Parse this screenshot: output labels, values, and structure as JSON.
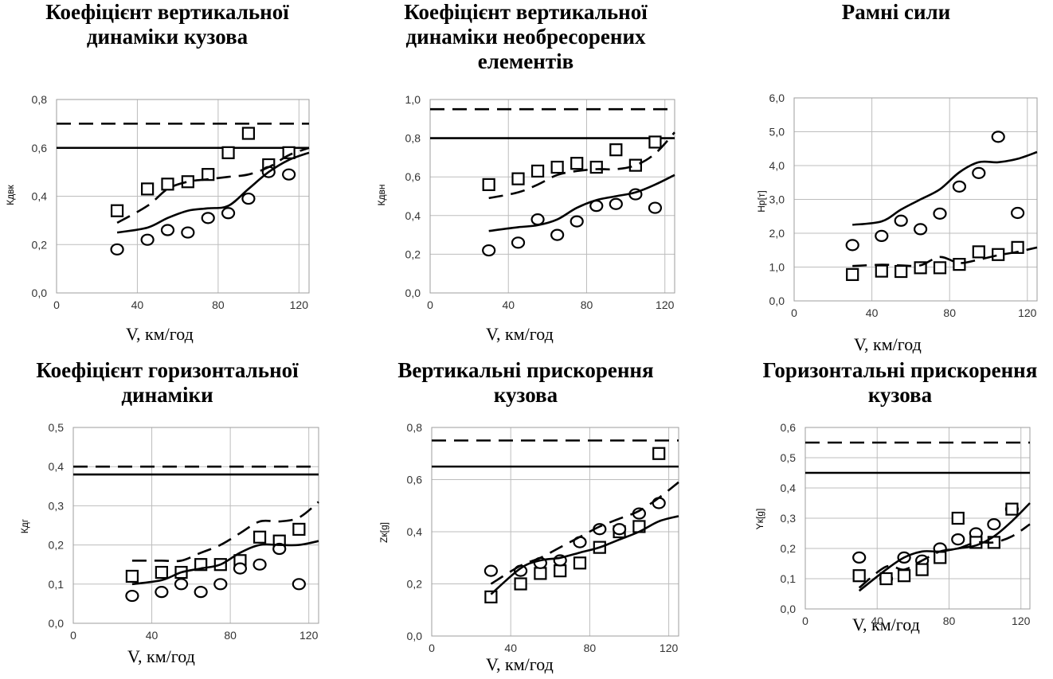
{
  "chart_data": [
    {
      "type": "line",
      "title": "Коефіцієнт вертикальної\nдинаміки кузова",
      "xlabel": "V, км/год",
      "ylabel": "Кдвк",
      "xlim": [
        0,
        125
      ],
      "xticks": [
        "0",
        "40",
        "80",
        "120"
      ],
      "xtick_values": [
        0,
        40,
        80,
        120
      ],
      "ylim": [
        0,
        0.8
      ],
      "yticks": [
        "0,0",
        "0,2",
        "0,4",
        "0,6",
        "0,8"
      ],
      "grid": true,
      "hlines": [
        {
          "value": 0.7,
          "style": "dashed"
        },
        {
          "value": 0.6,
          "style": "solid"
        }
      ],
      "series": [
        {
          "marker": "square",
          "x": [
            30,
            45,
            55,
            65,
            75,
            85,
            95,
            105,
            115
          ],
          "y": [
            0.34,
            0.43,
            0.45,
            0.46,
            0.49,
            0.58,
            0.66,
            0.53,
            0.58
          ]
        },
        {
          "marker": "circle",
          "x": [
            30,
            45,
            55,
            65,
            75,
            85,
            95,
            105,
            115
          ],
          "y": [
            0.18,
            0.22,
            0.26,
            0.25,
            0.31,
            0.33,
            0.39,
            0.5,
            0.49
          ]
        },
        {
          "style": "dashed",
          "x": [
            30,
            45,
            55,
            65,
            75,
            85,
            95,
            105,
            115,
            125
          ],
          "y": [
            0.29,
            0.36,
            0.43,
            0.46,
            0.47,
            0.48,
            0.49,
            0.52,
            0.57,
            0.6
          ]
        },
        {
          "style": "solid",
          "x": [
            30,
            45,
            55,
            65,
            75,
            85,
            95,
            105,
            115,
            125
          ],
          "y": [
            0.25,
            0.27,
            0.31,
            0.34,
            0.35,
            0.36,
            0.43,
            0.5,
            0.55,
            0.58
          ]
        }
      ]
    },
    {
      "type": "line",
      "title": "Коефіцієнт вертикальної\nдинаміки необресорених\nелементів",
      "xlabel": "V, км/год",
      "ylabel": "Кдвн",
      "xlim": [
        0,
        125
      ],
      "xticks": [
        "0",
        "40",
        "80",
        "120"
      ],
      "xtick_values": [
        0,
        40,
        80,
        120
      ],
      "ylim": [
        0,
        1.0
      ],
      "yticks": [
        "0,0",
        "0,2",
        "0,4",
        "0,6",
        "0,8",
        "1,0"
      ],
      "grid": true,
      "hlines": [
        {
          "value": 0.95,
          "style": "dashed"
        },
        {
          "value": 0.8,
          "style": "solid"
        }
      ],
      "series": [
        {
          "marker": "square",
          "x": [
            30,
            45,
            55,
            65,
            75,
            85,
            95,
            105,
            115
          ],
          "y": [
            0.56,
            0.59,
            0.63,
            0.65,
            0.67,
            0.65,
            0.74,
            0.66,
            0.78
          ]
        },
        {
          "marker": "circle",
          "x": [
            30,
            45,
            55,
            65,
            75,
            85,
            95,
            105,
            115
          ],
          "y": [
            0.22,
            0.26,
            0.38,
            0.3,
            0.37,
            0.45,
            0.46,
            0.51,
            0.44
          ]
        },
        {
          "style": "dashed",
          "x": [
            30,
            45,
            55,
            65,
            75,
            85,
            95,
            105,
            115,
            125
          ],
          "y": [
            0.49,
            0.52,
            0.56,
            0.61,
            0.63,
            0.64,
            0.64,
            0.66,
            0.72,
            0.83
          ]
        },
        {
          "style": "solid",
          "x": [
            30,
            45,
            55,
            65,
            75,
            85,
            95,
            105,
            115,
            125
          ],
          "y": [
            0.32,
            0.34,
            0.35,
            0.38,
            0.44,
            0.48,
            0.5,
            0.52,
            0.56,
            0.61
          ]
        }
      ]
    },
    {
      "type": "line",
      "title": "Рамні сили",
      "xlabel": "V, км/год",
      "ylabel": "Нр[т]",
      "xlim": [
        0,
        125
      ],
      "xticks": [
        "0",
        "40",
        "80",
        "120"
      ],
      "xtick_values": [
        0,
        40,
        80,
        120
      ],
      "ylim": [
        0,
        6.0
      ],
      "yticks": [
        "0,0",
        "1,0",
        "2,0",
        "3,0",
        "4,0",
        "5,0",
        "6,0"
      ],
      "grid": true,
      "hlines": [],
      "series": [
        {
          "marker": "circle",
          "x": [
            30,
            45,
            55,
            65,
            75,
            85,
            95,
            105,
            115
          ],
          "y": [
            1.65,
            1.92,
            2.37,
            2.12,
            2.58,
            3.38,
            3.78,
            4.85,
            2.6
          ]
        },
        {
          "marker": "square",
          "x": [
            30,
            45,
            55,
            65,
            75,
            85,
            95,
            105,
            115
          ],
          "y": [
            0.78,
            0.88,
            0.87,
            0.98,
            0.98,
            1.08,
            1.45,
            1.37,
            1.58
          ]
        },
        {
          "style": "solid",
          "x": [
            30,
            45,
            55,
            65,
            75,
            85,
            95,
            105,
            115,
            125
          ],
          "y": [
            2.25,
            2.35,
            2.7,
            3.0,
            3.3,
            3.8,
            4.1,
            4.1,
            4.2,
            4.4
          ]
        },
        {
          "style": "dashed",
          "x": [
            30,
            45,
            55,
            65,
            75,
            85,
            95,
            105,
            115,
            125
          ],
          "y": [
            1.03,
            1.07,
            1.05,
            1.05,
            1.3,
            1.12,
            1.22,
            1.35,
            1.45,
            1.58
          ]
        }
      ]
    },
    {
      "type": "line",
      "title": "Коефіцієнт горизонтальної\nдинаміки",
      "xlabel": "V, км/год",
      "ylabel": "Кдг",
      "xlim": [
        0,
        125
      ],
      "xticks": [
        "0",
        "40",
        "80",
        "120"
      ],
      "xtick_values": [
        0,
        40,
        80,
        120
      ],
      "ylim": [
        0,
        0.5
      ],
      "yticks": [
        "0,0",
        "0,1",
        "0,2",
        "0,3",
        "0,4",
        "0,5"
      ],
      "grid": true,
      "hlines": [
        {
          "value": 0.4,
          "style": "dashed"
        },
        {
          "value": 0.38,
          "style": "solid"
        }
      ],
      "series": [
        {
          "marker": "square",
          "x": [
            30,
            45,
            55,
            65,
            75,
            85,
            95,
            105,
            115
          ],
          "y": [
            0.12,
            0.13,
            0.13,
            0.15,
            0.15,
            0.16,
            0.22,
            0.21,
            0.24
          ]
        },
        {
          "marker": "circle",
          "x": [
            30,
            45,
            55,
            65,
            75,
            85,
            95,
            105,
            115
          ],
          "y": [
            0.07,
            0.08,
            0.1,
            0.08,
            0.1,
            0.14,
            0.15,
            0.19,
            0.1
          ]
        },
        {
          "style": "dashed",
          "x": [
            30,
            45,
            55,
            65,
            75,
            85,
            95,
            105,
            115,
            125
          ],
          "y": [
            0.16,
            0.16,
            0.16,
            0.18,
            0.2,
            0.23,
            0.26,
            0.26,
            0.27,
            0.31
          ]
        },
        {
          "style": "solid",
          "x": [
            30,
            45,
            55,
            65,
            75,
            85,
            95,
            105,
            115,
            125
          ],
          "y": [
            0.1,
            0.11,
            0.13,
            0.14,
            0.15,
            0.18,
            0.2,
            0.2,
            0.2,
            0.21
          ]
        }
      ]
    },
    {
      "type": "line",
      "title": "Вертикальні прискорення\nкузова",
      "xlabel": "V, км/год",
      "ylabel": "Zк[g]",
      "xlim": [
        0,
        125
      ],
      "xticks": [
        "0",
        "40",
        "80",
        "120"
      ],
      "xtick_values": [
        0,
        40,
        80,
        120
      ],
      "ylim": [
        0,
        0.8
      ],
      "yticks": [
        "0,0",
        "0,2",
        "0,4",
        "0,6",
        "0,8"
      ],
      "grid": true,
      "hlines": [
        {
          "value": 0.75,
          "style": "dashed"
        },
        {
          "value": 0.65,
          "style": "solid"
        }
      ],
      "series": [
        {
          "marker": "square",
          "x": [
            30,
            45,
            55,
            65,
            75,
            85,
            95,
            105,
            115
          ],
          "y": [
            0.15,
            0.2,
            0.24,
            0.25,
            0.28,
            0.34,
            0.4,
            0.42,
            0.7
          ]
        },
        {
          "marker": "circle",
          "x": [
            30,
            45,
            55,
            65,
            75,
            85,
            95,
            105,
            115
          ],
          "y": [
            0.25,
            0.25,
            0.28,
            0.29,
            0.36,
            0.41,
            0.41,
            0.47,
            0.51
          ]
        },
        {
          "style": "dashed",
          "x": [
            30,
            45,
            55,
            65,
            75,
            85,
            95,
            105,
            115,
            125
          ],
          "y": [
            0.2,
            0.27,
            0.3,
            0.34,
            0.38,
            0.42,
            0.45,
            0.48,
            0.53,
            0.59
          ]
        },
        {
          "style": "solid",
          "x": [
            30,
            45,
            55,
            65,
            75,
            85,
            95,
            105,
            115,
            125
          ],
          "y": [
            0.16,
            0.26,
            0.29,
            0.3,
            0.32,
            0.34,
            0.37,
            0.4,
            0.44,
            0.46
          ]
        }
      ]
    },
    {
      "type": "line",
      "title": "Горизонтальні прискорення\nкузова",
      "xlabel": "V, км/год",
      "ylabel": "Yк[g]",
      "xlim": [
        0,
        125
      ],
      "xticks": [
        "0",
        "40",
        "80",
        "120"
      ],
      "xtick_values": [
        0,
        40,
        80,
        120
      ],
      "ylim": [
        0,
        0.6
      ],
      "yticks": [
        "0,0",
        "0,1",
        "0,2",
        "0,3",
        "0,4",
        "0,5",
        "0,6"
      ],
      "grid": true,
      "hlines": [
        {
          "value": 0.55,
          "style": "dashed"
        },
        {
          "value": 0.45,
          "style": "solid"
        }
      ],
      "series": [
        {
          "marker": "circle",
          "x": [
            30,
            45,
            55,
            65,
            75,
            85,
            95,
            105,
            115
          ],
          "y": [
            0.17,
            0.1,
            0.17,
            0.16,
            0.2,
            0.23,
            0.25,
            0.28,
            0.33
          ]
        },
        {
          "marker": "square",
          "x": [
            30,
            45,
            55,
            65,
            75,
            85,
            95,
            105,
            115
          ],
          "y": [
            0.11,
            0.1,
            0.11,
            0.13,
            0.17,
            0.3,
            0.22,
            0.22,
            0.33
          ]
        },
        {
          "style": "solid",
          "x": [
            30,
            45,
            55,
            65,
            75,
            85,
            95,
            105,
            115,
            125
          ],
          "y": [
            0.06,
            0.13,
            0.17,
            0.19,
            0.19,
            0.2,
            0.21,
            0.24,
            0.29,
            0.35
          ]
        },
        {
          "style": "dashed",
          "x": [
            30,
            45,
            55,
            65,
            75,
            85,
            95,
            105,
            115,
            125
          ],
          "y": [
            0.07,
            0.14,
            0.13,
            0.16,
            0.19,
            0.2,
            0.22,
            0.22,
            0.24,
            0.28
          ]
        }
      ]
    }
  ]
}
